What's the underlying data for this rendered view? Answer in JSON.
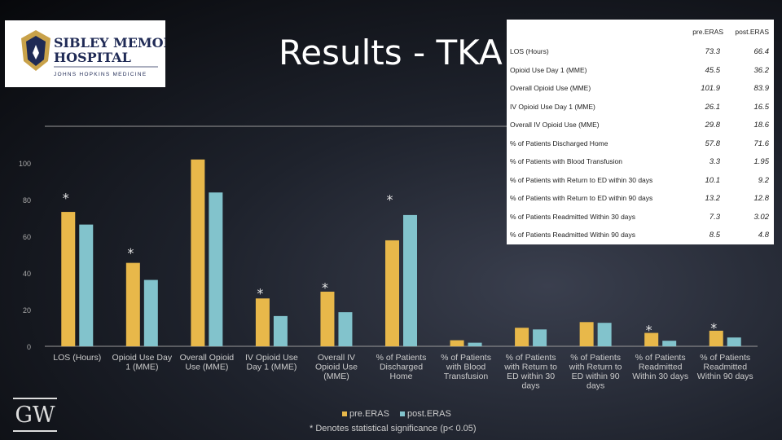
{
  "title": "Results - TKA",
  "logo": {
    "line1": "SIBLEY MEMORIAL",
    "line2": "HOSPITAL",
    "line3": "JOHNS HOPKINS MEDICINE"
  },
  "footer_logo": "GW",
  "note": "* Denotes statistical significance (p< 0.05)",
  "colors": {
    "pre": "#e8b84a",
    "post": "#82c3cc",
    "axis": "#999999",
    "text": "#cccccc"
  },
  "stats_table": {
    "headers": [
      "pre.ERAS",
      "post.ERAS"
    ],
    "rows": [
      {
        "label": "LOS (Hours)",
        "pre": "73.3",
        "post": "66.4"
      },
      {
        "label": "Opioid Use Day 1 (MME)",
        "pre": "45.5",
        "post": "36.2"
      },
      {
        "label": "Overall Opioid Use (MME)",
        "pre": "101.9",
        "post": "83.9"
      },
      {
        "label": "IV Opioid Use Day 1 (MME)",
        "pre": "26.1",
        "post": "16.5"
      },
      {
        "label": "Overall IV Opioid Use (MME)",
        "pre": "29.8",
        "post": "18.6"
      },
      {
        "label": "% of Patients Discharged Home",
        "pre": "57.8",
        "post": "71.6"
      },
      {
        "label": "% of Patients with Blood Transfusion",
        "pre": "3.3",
        "post": "1.95"
      },
      {
        "label": "% of Patients with Return to ED within 30 days",
        "pre": "10.1",
        "post": "9.2"
      },
      {
        "label": "% of Patients with Return to ED within 90 days",
        "pre": "13.2",
        "post": "12.8"
      },
      {
        "label": "% of Patients Readmitted Within 30 days",
        "pre": "7.3",
        "post": "3.02"
      },
      {
        "label": "% of Patients Readmitted Within 90 days",
        "pre": "8.5",
        "post": "4.8"
      }
    ]
  },
  "chart_data": {
    "type": "bar",
    "title": "",
    "xlabel": "",
    "ylabel": "",
    "ylim": [
      0,
      100
    ],
    "yticks": [
      0,
      20,
      40,
      60,
      80,
      100
    ],
    "legend": "bottom",
    "categories": [
      [
        "LOS (Hours)"
      ],
      [
        "Opioid Use Day",
        "1 (MME)"
      ],
      [
        "Overall Opioid",
        "Use (MME)"
      ],
      [
        "IV Opioid Use",
        "Day 1 (MME)"
      ],
      [
        "Overall IV",
        "Opioid Use",
        "(MME)"
      ],
      [
        "% of Patients",
        "Discharged",
        "Home"
      ],
      [
        "% of Patients",
        "with Blood",
        "Transfusion"
      ],
      [
        "% of Patients",
        "with Return to",
        "ED within 30",
        "days"
      ],
      [
        "% of Patients",
        "with Return to",
        "ED within 90",
        "days"
      ],
      [
        "% of Patients",
        "Readmitted",
        "Within 30 days"
      ],
      [
        "% of Patients",
        "Readmitted",
        "Within 90 days"
      ]
    ],
    "series": [
      {
        "name": "pre.ERAS",
        "values": [
          73.3,
          45.5,
          101.9,
          26.1,
          29.8,
          57.8,
          3.3,
          10.1,
          13.2,
          7.3,
          8.5
        ]
      },
      {
        "name": "post.ERAS",
        "values": [
          66.4,
          36.2,
          83.9,
          16.5,
          18.6,
          71.6,
          1.95,
          9.2,
          12.8,
          3.02,
          4.8
        ]
      }
    ],
    "significance": [
      {
        "category_index": 0,
        "symbol": "*",
        "at": 83
      },
      {
        "category_index": 1,
        "symbol": "*",
        "at": 53
      },
      {
        "category_index": 3,
        "symbol": "*",
        "at": 31
      },
      {
        "category_index": 4,
        "symbol": "*",
        "at": 34
      },
      {
        "category_index": 5,
        "symbol": "*",
        "at": 82
      },
      {
        "category_index": 9,
        "symbol": "*",
        "at": 11
      },
      {
        "category_index": 10,
        "symbol": "*",
        "at": 12
      }
    ]
  }
}
